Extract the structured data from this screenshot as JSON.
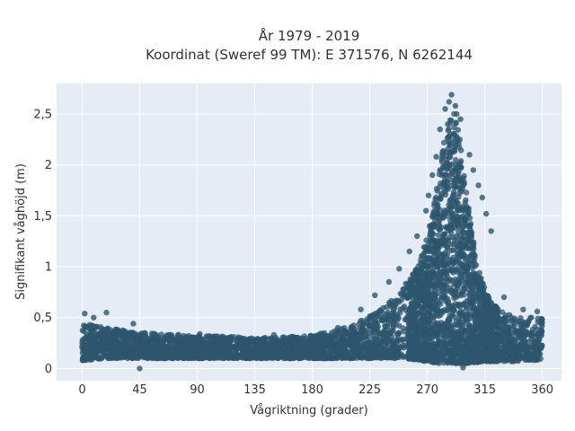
{
  "chart_data": {
    "type": "scatter",
    "title_line1": "År 1979 - 2019",
    "title_line2": "Koordinat (Sweref 99 TM): E 371576, N 6262144",
    "xlabel": "Vågriktning (grader)",
    "ylabel": "Signifikant våghöjd (m)",
    "xlim": [
      -20,
      375
    ],
    "ylim": [
      -0.12,
      2.8
    ],
    "x_ticks": [
      {
        "value": 0,
        "label": "0"
      },
      {
        "value": 45,
        "label": "45"
      },
      {
        "value": 90,
        "label": "90"
      },
      {
        "value": 135,
        "label": "135"
      },
      {
        "value": 180,
        "label": "180"
      },
      {
        "value": 225,
        "label": "225"
      },
      {
        "value": 270,
        "label": "270"
      },
      {
        "value": 315,
        "label": "315"
      },
      {
        "value": 360,
        "label": "360"
      }
    ],
    "y_ticks": [
      {
        "value": 0,
        "label": "0"
      },
      {
        "value": 0.5,
        "label": "0,5"
      },
      {
        "value": 1,
        "label": "1"
      },
      {
        "value": 1.5,
        "label": "1,5"
      },
      {
        "value": 2,
        "label": "2"
      },
      {
        "value": 2.5,
        "label": "2,5"
      }
    ],
    "grid": true,
    "colors": {
      "background": "#e5ecf6",
      "grid": "#ffffff",
      "marker": "#2e566e"
    },
    "envelope": {
      "direction": [
        0,
        10,
        20,
        40,
        60,
        80,
        100,
        120,
        140,
        160,
        180,
        200,
        210,
        220,
        230,
        240,
        250,
        260,
        265,
        270,
        275,
        280,
        285,
        290,
        295,
        300,
        305,
        310,
        315,
        320,
        330,
        340,
        350,
        360
      ],
      "upper_height": [
        0.45,
        0.42,
        0.4,
        0.36,
        0.34,
        0.33,
        0.32,
        0.31,
        0.3,
        0.31,
        0.33,
        0.38,
        0.42,
        0.48,
        0.55,
        0.65,
        0.78,
        0.95,
        1.1,
        1.3,
        1.6,
        2.0,
        2.4,
        2.6,
        2.3,
        1.8,
        1.35,
        1.0,
        0.78,
        0.65,
        0.55,
        0.5,
        0.5,
        0.5
      ],
      "lower_height": [
        0.08,
        0.09,
        0.1,
        0.1,
        0.1,
        0.1,
        0.1,
        0.1,
        0.1,
        0.1,
        0.1,
        0.1,
        0.1,
        0.1,
        0.1,
        0.1,
        0.1,
        0.09,
        0.08,
        0.07,
        0.06,
        0.05,
        0.05,
        0.05,
        0.05,
        0.05,
        0.06,
        0.06,
        0.07,
        0.07,
        0.07,
        0.07,
        0.08,
        0.08
      ]
    },
    "peak_points": [
      {
        "x": 289,
        "y": 2.69
      },
      {
        "x": 287,
        "y": 2.62
      },
      {
        "x": 292,
        "y": 2.58
      },
      {
        "x": 284,
        "y": 2.55
      },
      {
        "x": 296,
        "y": 2.45
      },
      {
        "x": 280,
        "y": 2.35
      },
      {
        "x": 303,
        "y": 2.1
      },
      {
        "x": 277,
        "y": 2.08
      },
      {
        "x": 306,
        "y": 1.95
      },
      {
        "x": 274,
        "y": 1.9
      },
      {
        "x": 310,
        "y": 1.8
      },
      {
        "x": 271,
        "y": 1.7
      },
      {
        "x": 313,
        "y": 1.68
      },
      {
        "x": 316,
        "y": 1.52
      },
      {
        "x": 286,
        "y": 2.4
      },
      {
        "x": 293,
        "y": 2.5
      },
      {
        "x": 269,
        "y": 1.55
      },
      {
        "x": 320,
        "y": 1.35
      },
      {
        "x": 262,
        "y": 1.3
      },
      {
        "x": 256,
        "y": 1.15
      },
      {
        "x": 248,
        "y": 0.98
      },
      {
        "x": 240,
        "y": 0.85
      },
      {
        "x": 229,
        "y": 0.72
      },
      {
        "x": 218,
        "y": 0.58
      },
      {
        "x": 2,
        "y": 0.54
      },
      {
        "x": 19,
        "y": 0.55
      },
      {
        "x": 9,
        "y": 0.5
      },
      {
        "x": 330,
        "y": 0.7
      },
      {
        "x": 345,
        "y": 0.58
      },
      {
        "x": 356,
        "y": 0.56
      },
      {
        "x": 40,
        "y": 0.44
      },
      {
        "x": 92,
        "y": 0.34
      },
      {
        "x": 150,
        "y": 0.33
      },
      {
        "x": 200,
        "y": 0.4
      },
      {
        "x": 45,
        "y": 0.0
      },
      {
        "x": 298,
        "y": 0.01
      }
    ]
  }
}
